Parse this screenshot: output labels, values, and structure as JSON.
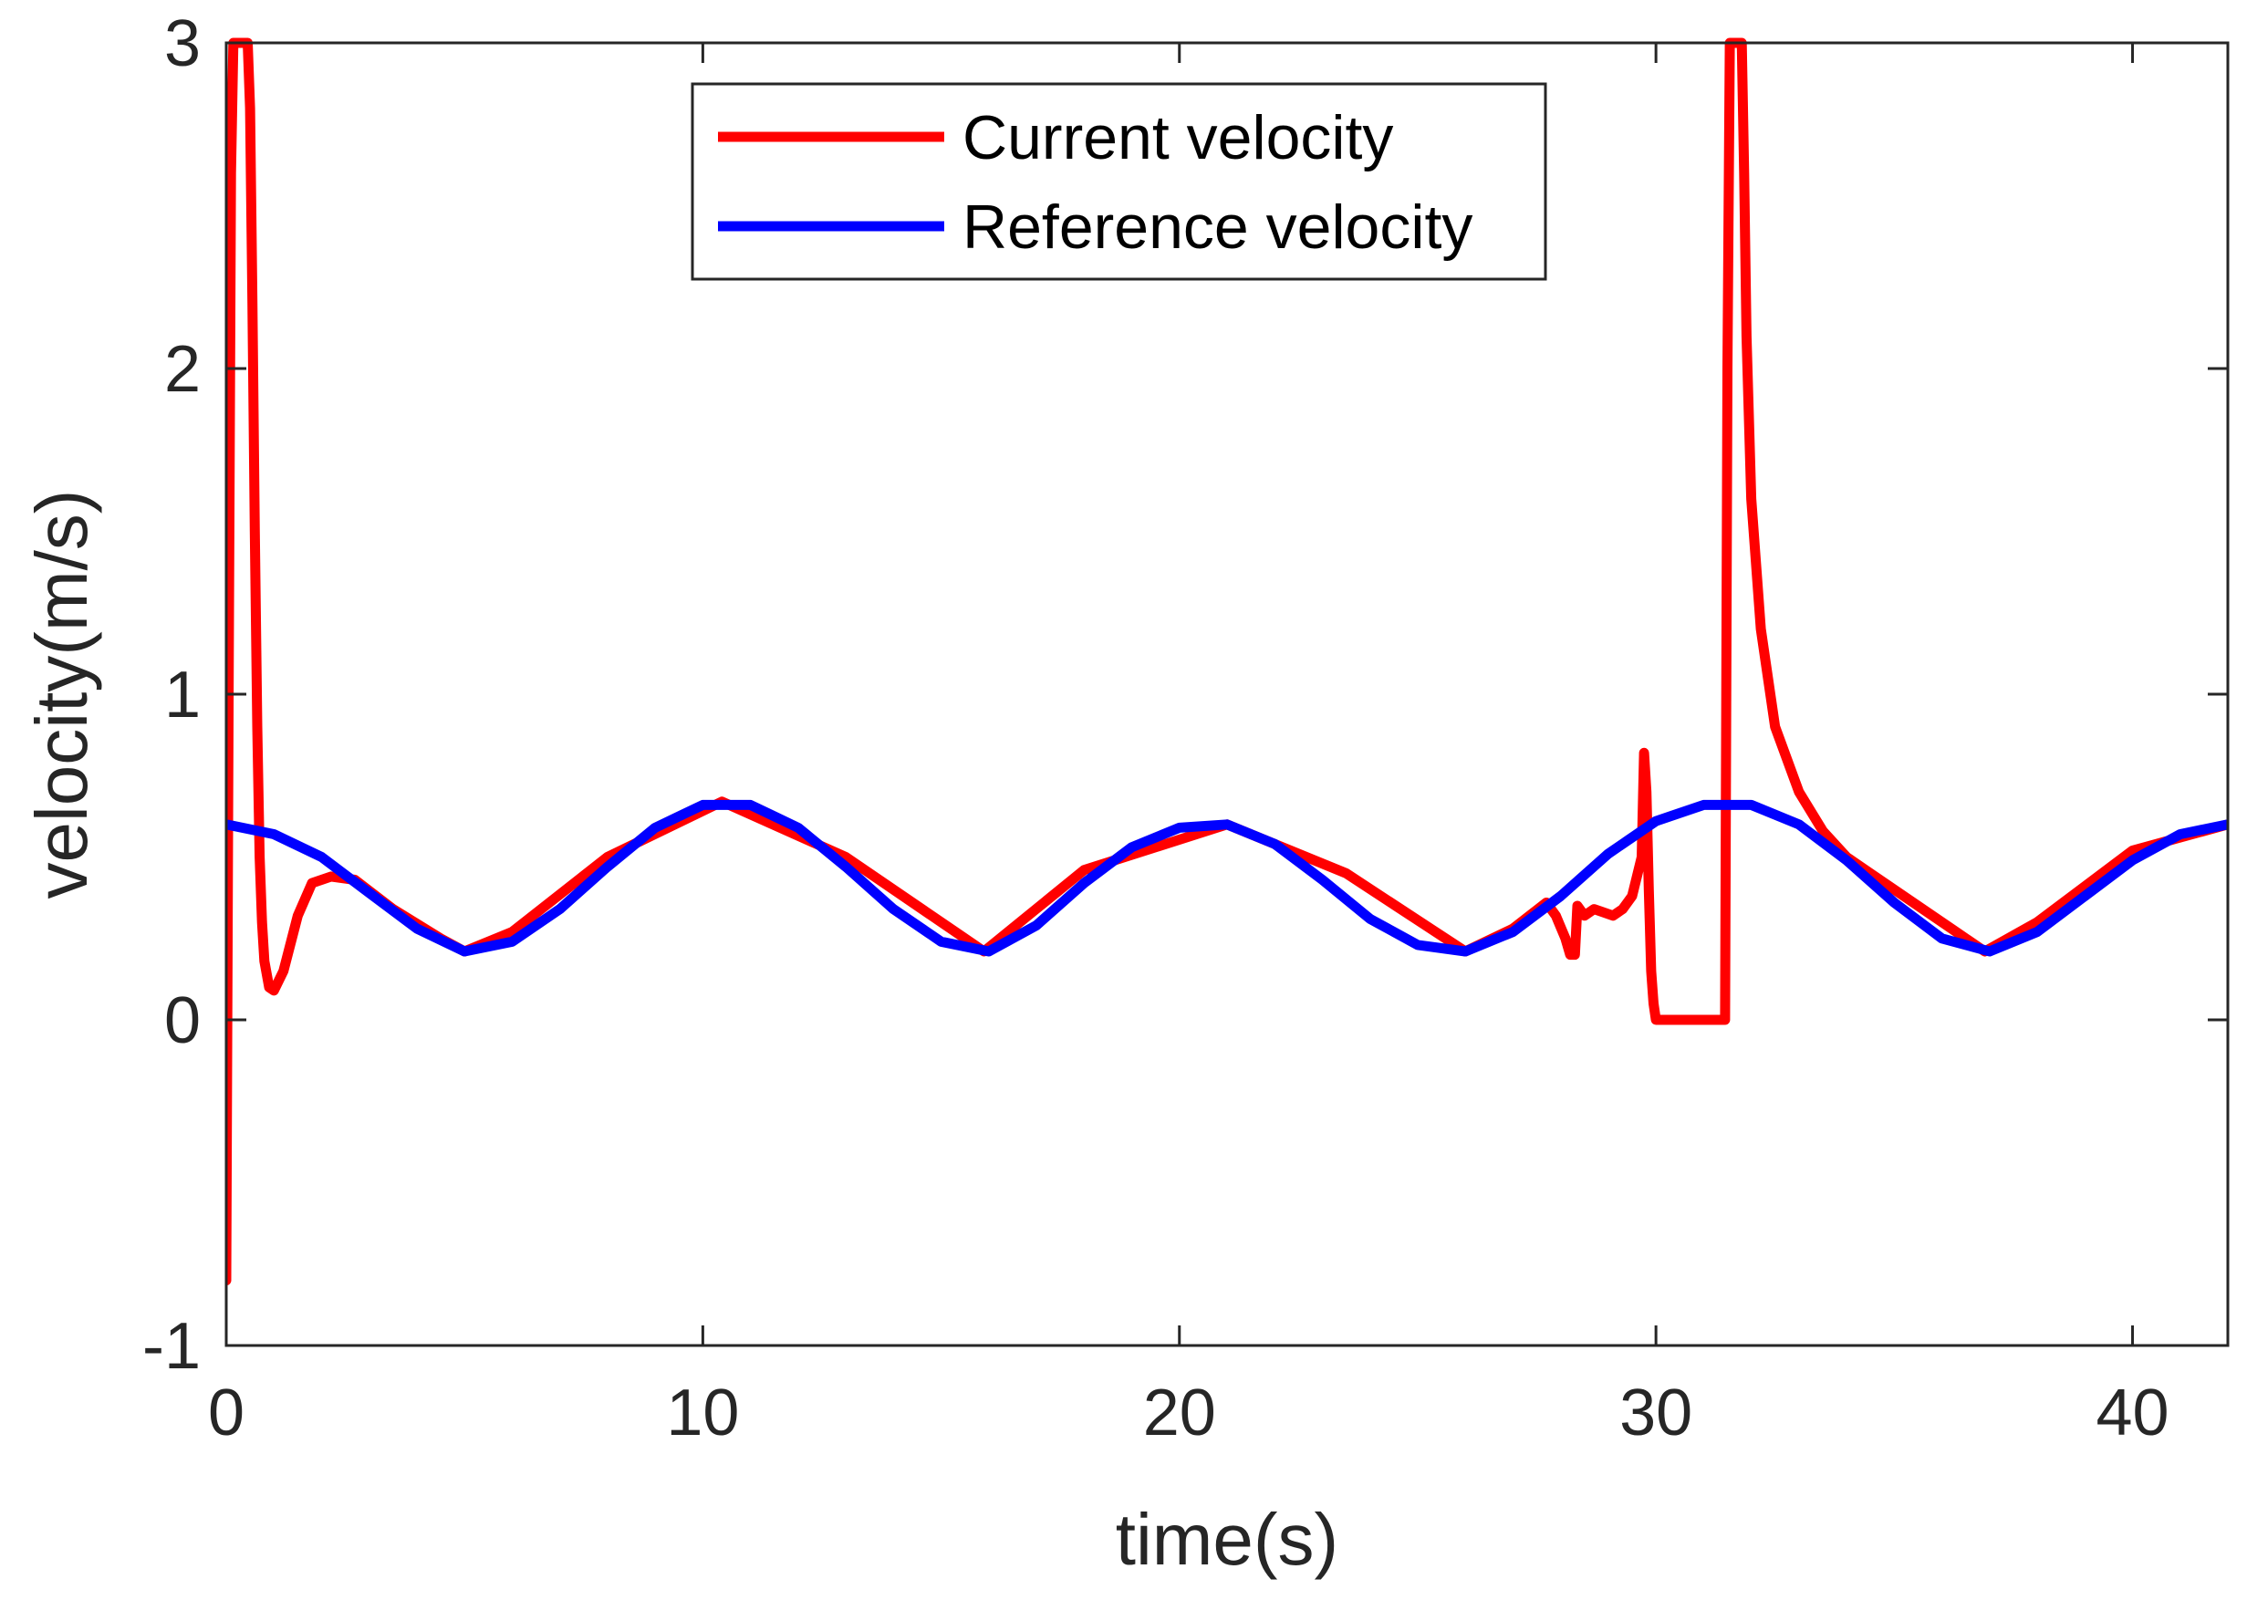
{
  "chart_data": {
    "type": "line",
    "title": "",
    "xlabel": "time(s)",
    "ylabel": "velocity(m/s)",
    "xlim": [
      0,
      42
    ],
    "ylim": [
      -1,
      3
    ],
    "xticks": [
      0,
      10,
      20,
      30,
      40
    ],
    "yticks": [
      -1,
      0,
      1,
      2,
      3
    ],
    "xtick_labels": [
      "0",
      "10",
      "20",
      "30",
      "40"
    ],
    "ytick_labels": [
      "-1",
      "0",
      "1",
      "2",
      "3"
    ],
    "grid": false,
    "legend_position": "top-center",
    "series": [
      {
        "name": "Current velocity",
        "color": "#ff0000",
        "x": [
          0,
          0.05,
          0.1,
          0.15,
          0.2,
          0.25,
          0.35,
          0.45,
          0.5,
          0.55,
          0.6,
          0.65,
          0.7,
          0.75,
          0.8,
          0.9,
          1.0,
          1.2,
          1.5,
          1.8,
          2.2,
          2.7,
          3.5,
          4.5,
          5.0,
          6.0,
          8.0,
          10.4,
          13.0,
          15.9,
          18.0,
          21.0,
          23.5,
          26.0,
          27.0,
          27.7,
          27.9,
          28.1,
          28.2,
          28.3,
          28.35,
          28.5,
          28.7,
          28.9,
          29.1,
          29.3,
          29.5,
          29.7,
          29.75,
          29.8,
          29.85,
          29.9,
          29.95,
          30.0,
          31.0,
          31.45,
          31.5,
          31.55,
          31.6,
          31.8,
          31.85,
          31.9,
          32.0,
          32.2,
          32.5,
          33.0,
          33.5,
          34.0,
          34.5,
          36.9,
          38.0,
          40.0,
          42.0
        ],
        "y": [
          -0.8,
          1.0,
          2.6,
          3.0,
          3.0,
          3.0,
          3.0,
          3.0,
          2.8,
          2.2,
          1.5,
          0.9,
          0.5,
          0.3,
          0.18,
          0.1,
          0.09,
          0.15,
          0.32,
          0.42,
          0.44,
          0.43,
          0.34,
          0.25,
          0.21,
          0.27,
          0.5,
          0.67,
          0.5,
          0.21,
          0.46,
          0.6,
          0.45,
          0.21,
          0.28,
          0.36,
          0.32,
          0.25,
          0.2,
          0.2,
          0.35,
          0.32,
          0.34,
          0.33,
          0.32,
          0.34,
          0.38,
          0.5,
          0.82,
          0.7,
          0.4,
          0.15,
          0.05,
          0.0,
          0.0,
          0.0,
          2.0,
          3.0,
          3.0,
          3.0,
          2.6,
          2.1,
          1.6,
          1.2,
          0.9,
          0.7,
          0.58,
          0.5,
          0.45,
          0.21,
          0.3,
          0.52,
          0.6
        ]
      },
      {
        "name": "Reference velocity",
        "color": "#0000ff",
        "x": [
          0,
          1,
          2,
          3,
          4,
          5,
          6,
          7,
          8,
          9,
          10,
          11,
          12,
          13,
          14,
          15,
          16,
          17,
          18,
          19,
          20,
          21,
          22,
          23,
          24,
          25,
          26,
          27,
          28,
          29,
          30,
          31,
          32,
          33,
          34,
          35,
          36,
          37,
          38,
          39,
          40,
          41,
          42
        ],
        "y": [
          0.6,
          0.57,
          0.5,
          0.39,
          0.28,
          0.21,
          0.24,
          0.34,
          0.47,
          0.59,
          0.66,
          0.66,
          0.59,
          0.47,
          0.34,
          0.24,
          0.21,
          0.29,
          0.42,
          0.53,
          0.59,
          0.6,
          0.54,
          0.43,
          0.31,
          0.23,
          0.21,
          0.27,
          0.38,
          0.51,
          0.61,
          0.66,
          0.66,
          0.6,
          0.49,
          0.36,
          0.25,
          0.21,
          0.27,
          0.38,
          0.49,
          0.57,
          0.6
        ]
      }
    ]
  }
}
